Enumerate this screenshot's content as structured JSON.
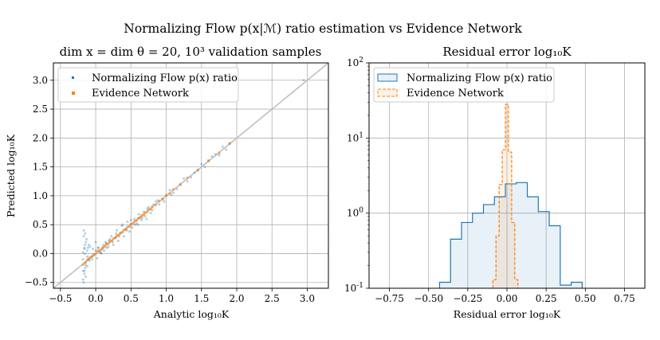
{
  "figure": {
    "suptitle": "Normalizing Flow p(x|ℳ) ratio estimation vs Evidence Network"
  },
  "chart_data": [
    {
      "type": "scatter",
      "title": "dim x = dim θ = 20, 10³ validation samples",
      "xlabel": "Analytic log₁₀K",
      "ylabel": "Predicted log₁₀K",
      "xlim": [
        -0.6,
        3.3
      ],
      "ylim": [
        -0.6,
        3.3
      ],
      "xticks": [
        -0.5,
        0.0,
        0.5,
        1.0,
        1.5,
        2.0,
        2.5,
        3.0
      ],
      "yticks": [
        -0.5,
        0.0,
        0.5,
        1.0,
        1.5,
        2.0,
        2.5,
        3.0
      ],
      "xtick_labels": [
        "−0.5",
        "0.0",
        "0.5",
        "1.0",
        "1.5",
        "2.0",
        "2.5",
        "3.0"
      ],
      "ytick_labels": [
        "−0.5",
        "0.0",
        "0.5",
        "1.0",
        "1.5",
        "2.0",
        "2.5",
        "3.0"
      ],
      "grid": true,
      "legend_position": "upper-left",
      "identity_line": true,
      "series": [
        {
          "name": "Normalizing Flow p(x) ratio",
          "color": "#1f77b4",
          "x": [
            -0.18,
            -0.17,
            -0.16,
            -0.15,
            -0.14,
            -0.12,
            -0.1,
            -0.08,
            -0.06,
            -0.04,
            -0.02,
            0.0,
            0.02,
            0.04,
            0.06,
            0.08,
            0.1,
            0.12,
            0.14,
            0.16,
            0.18,
            0.2,
            0.22,
            0.25,
            0.28,
            0.3,
            0.32,
            0.35,
            0.38,
            0.4,
            0.42,
            0.45,
            0.48,
            0.5,
            0.52,
            0.55,
            0.58,
            0.6,
            0.62,
            0.65,
            0.68,
            0.7,
            0.72,
            0.75,
            0.78,
            0.8,
            0.85,
            0.9,
            0.95,
            1.0,
            1.05,
            1.1,
            1.2,
            1.3,
            1.4,
            1.5,
            1.6,
            1.7,
            1.8,
            1.9,
            -0.18,
            -0.17,
            -0.16,
            -0.15,
            -0.14,
            -0.18,
            -0.16,
            -0.15,
            -0.14,
            -0.13,
            -0.12,
            -0.11,
            -0.1,
            -0.09,
            -0.05,
            0.0,
            0.03,
            0.07,
            0.11,
            0.15,
            0.19,
            0.24,
            0.29,
            0.33,
            0.37,
            0.44,
            0.5,
            0.56,
            0.61,
            0.66,
            0.73,
            0.82,
            0.88,
            0.97,
            1.07,
            1.15,
            1.25,
            1.35,
            1.45,
            1.55,
            1.65,
            1.75,
            1.85,
            2.95,
            -0.17,
            -0.15,
            -0.12,
            -0.16,
            -0.14,
            -0.18
          ],
          "y": [
            -0.45,
            0.3,
            -0.3,
            0.15,
            -0.2,
            0.05,
            -0.1,
            0.12,
            -0.05,
            0.08,
            -0.02,
            0.05,
            -0.08,
            0.1,
            0.02,
            0.0,
            0.08,
            0.05,
            0.2,
            0.1,
            0.12,
            0.25,
            0.3,
            0.15,
            0.28,
            0.4,
            0.22,
            0.35,
            0.5,
            0.3,
            0.42,
            0.55,
            0.38,
            0.5,
            0.45,
            0.6,
            0.52,
            0.5,
            0.62,
            0.58,
            0.72,
            0.65,
            0.6,
            0.8,
            0.7,
            0.75,
            0.9,
            0.85,
            0.95,
            1.0,
            1.1,
            1.05,
            1.2,
            1.25,
            1.4,
            1.55,
            1.6,
            1.72,
            1.85,
            1.9,
            -0.3,
            0.4,
            0.1,
            -0.25,
            0.2,
            -0.1,
            -0.35,
            0.0,
            -0.15,
            0.25,
            -0.05,
            0.1,
            0.15,
            -0.12,
            -0.1,
            0.2,
            0.1,
            0.02,
            0.15,
            0.18,
            0.22,
            0.2,
            0.35,
            0.3,
            0.48,
            0.4,
            0.58,
            0.5,
            0.68,
            0.62,
            0.78,
            0.85,
            0.92,
            0.9,
            1.02,
            1.12,
            1.3,
            1.32,
            1.45,
            1.5,
            1.68,
            1.7,
            1.8,
            3.0,
            -0.5,
            0.35,
            -0.22,
            0.08,
            -0.4,
            0.02
          ]
        },
        {
          "name": "Evidence Network",
          "color": "#ff7f0e",
          "x": [
            -0.18,
            -0.15,
            -0.12,
            -0.1,
            -0.08,
            -0.05,
            -0.03,
            0.0,
            0.03,
            0.05,
            0.08,
            0.1,
            0.13,
            0.15,
            0.18,
            0.2,
            0.23,
            0.25,
            0.28,
            0.3,
            0.33,
            0.35,
            0.38,
            0.4,
            0.43,
            0.45,
            0.48,
            0.5,
            0.53,
            0.55,
            0.58,
            0.6,
            0.63,
            0.65,
            0.68,
            0.7,
            0.73,
            0.75,
            0.78,
            0.8,
            0.85,
            0.9,
            0.95,
            1.0,
            1.05,
            1.1,
            1.2,
            1.3,
            1.45,
            1.6,
            1.75,
            1.9
          ],
          "y": [
            -0.19,
            -0.16,
            -0.11,
            -0.09,
            -0.07,
            -0.05,
            -0.02,
            0.0,
            0.04,
            0.05,
            0.07,
            0.11,
            0.12,
            0.16,
            0.17,
            0.21,
            0.22,
            0.26,
            0.27,
            0.31,
            0.32,
            0.36,
            0.37,
            0.41,
            0.42,
            0.46,
            0.47,
            0.51,
            0.52,
            0.56,
            0.57,
            0.61,
            0.62,
            0.66,
            0.67,
            0.71,
            0.72,
            0.76,
            0.77,
            0.81,
            0.84,
            0.91,
            0.94,
            1.01,
            1.04,
            1.11,
            1.19,
            1.31,
            1.44,
            1.61,
            1.74,
            1.91
          ]
        }
      ]
    },
    {
      "type": "histogram",
      "title": "Residual error log₁₀K",
      "xlabel": "Residual error log₁₀K",
      "ylabel": "",
      "xlim": [
        -0.88,
        0.88
      ],
      "ylim_log10": [
        -1,
        2
      ],
      "yscale": "log",
      "xticks": [
        -0.75,
        -0.5,
        -0.25,
        0.0,
        0.25,
        0.5,
        0.75
      ],
      "xtick_labels": [
        "−0.75",
        "−0.50",
        "−0.25",
        "0.00",
        "0.25",
        "0.50",
        "0.75"
      ],
      "yticks_log10": [
        -1,
        0,
        1,
        2
      ],
      "ytick_bases": [
        "10",
        "10",
        "10",
        "10"
      ],
      "ytick_exponents": [
        "-1",
        "0",
        "1",
        "2"
      ],
      "grid": true,
      "legend_position": "upper-left",
      "series": [
        {
          "name": "Normalizing Flow p(x) ratio",
          "color": "#1f77b4",
          "style": "solid-step-filled",
          "bin_edges": [
            -0.43,
            -0.36,
            -0.29,
            -0.22,
            -0.15,
            -0.08,
            -0.01,
            0.06,
            0.13,
            0.2,
            0.27,
            0.34,
            0.41,
            0.48
          ],
          "counts": [
            0.12,
            0.45,
            0.75,
            1.0,
            1.3,
            1.65,
            2.45,
            2.55,
            1.65,
            1.05,
            0.68,
            0.11,
            0.12
          ]
        },
        {
          "name": "Evidence Network",
          "color": "#ff7f0e",
          "style": "dashed-step-filled",
          "bin_edges": [
            -0.09,
            -0.07,
            -0.05,
            -0.03,
            -0.01,
            0.01,
            0.03,
            0.05,
            0.07,
            0.09
          ],
          "counts": [
            0.13,
            0.5,
            2.4,
            7.0,
            28.0,
            6.5,
            0.75,
            0.13,
            0.1
          ]
        }
      ]
    }
  ]
}
